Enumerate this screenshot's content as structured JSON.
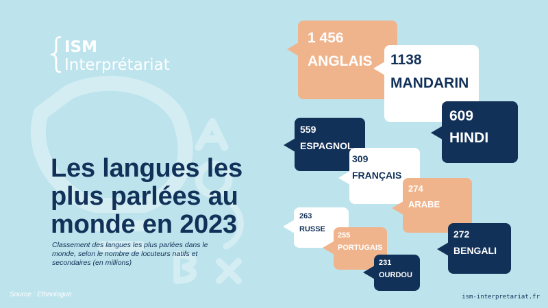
{
  "logo": {
    "brace": "{",
    "line1": "ISM",
    "line2": "Interprétariat"
  },
  "title": "Les langues les plus parlées au monde en 2023",
  "subtitle": "Classement des langues les plus parlées dans le monde, selon le nombre de locuteurs natifs et secondaires (en millions)",
  "source": "Source : Ethnologue",
  "website": "ism-interpretariat.fr",
  "colors": {
    "background": "#bde3ec",
    "navy": "#123158",
    "peach": "#f0b48d",
    "white": "#ffffff"
  },
  "languages": [
    {
      "value": "1 456",
      "name": "ANGLAIS",
      "color": "peach"
    },
    {
      "value": "1138",
      "name": "MANDARIN",
      "color": "white"
    },
    {
      "value": "609",
      "name": "HINDI",
      "color": "navy"
    },
    {
      "value": "559",
      "name": "ESPAGNOL",
      "color": "navy"
    },
    {
      "value": "309",
      "name": "FRANÇAIS",
      "color": "white"
    },
    {
      "value": "274",
      "name": "ARABE",
      "color": "peach"
    },
    {
      "value": "272",
      "name": "BENGALI",
      "color": "navy"
    },
    {
      "value": "263",
      "name": "RUSSE",
      "color": "white"
    },
    {
      "value": "255",
      "name": "PORTUGAIS",
      "color": "peach"
    },
    {
      "value": "231",
      "name": "OURDOU",
      "color": "navy"
    }
  ]
}
